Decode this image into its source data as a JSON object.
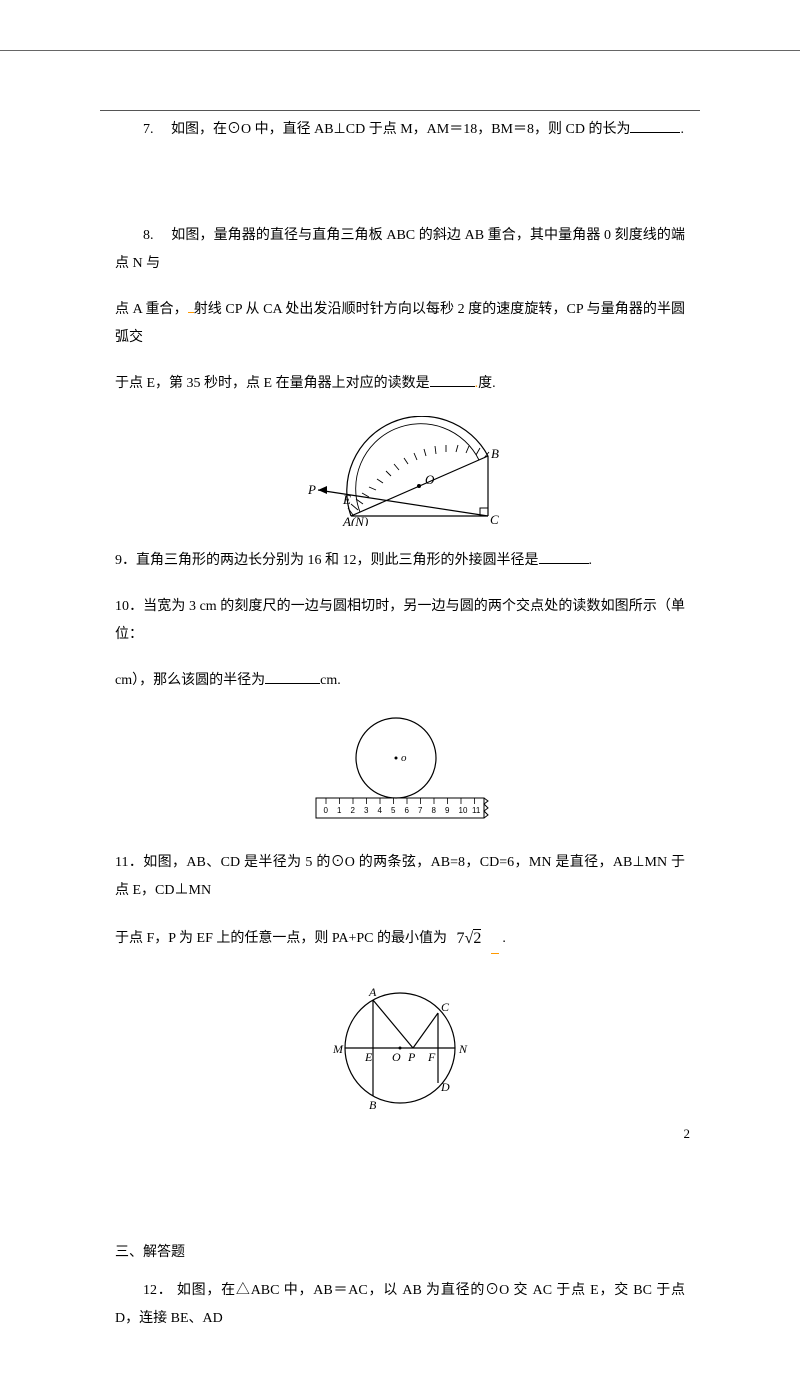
{
  "q7": {
    "text": "7.　 如图，在⊙O 中，直径 AB⊥CD 于点 M，AM＝18，BM＝8，则 CD 的长为",
    "suffix": "."
  },
  "q8": {
    "line1": "8.　 如图，量角器的直径与直角三角板 ABC 的斜边 AB 重合，其中量角器 0 刻度线的端点 N 与",
    "line2_a": "点 A 重合，",
    "line2_b": "射线 CP 从 CA 处出发沿顺时针方向以每秒 2 度的速度旋转，CP 与量角器的半圆弧交",
    "line3_a": "于点 E，第 35 秒时，点 E 在量角器上对应的读数是",
    "line3_b": "度.",
    "fig": {
      "labels": {
        "P": "P",
        "E": "E",
        "O": "O",
        "B": "B",
        "A": "A(N)",
        "C": "C"
      },
      "colors": {
        "stroke": "#000000",
        "fill": "#ffffff"
      }
    }
  },
  "q9": {
    "text": "9．直角三角形的两边长分别为 16 和 12，则此三角形的外接圆半径是",
    "suffix": "."
  },
  "q10": {
    "line1": "10．当宽为 3 cm 的刻度尺的一边与圆相切时，另一边与圆的两个交点处的读数如图所示（单位：",
    "line2_a": "cm），那么该圆的半径为",
    "line2_b": "cm.",
    "fig": {
      "O": "o",
      "ticks": [
        "0",
        "1",
        "2",
        "3",
        "4",
        "5",
        "6",
        "7",
        "8",
        "9",
        "10",
        "11"
      ],
      "colors": {
        "stroke": "#000000"
      }
    }
  },
  "q11": {
    "line1": "11．如图，AB、CD 是半径为 5 的⊙O 的两条弦，AB=8，CD=6，MN 是直径，AB⊥MN 于点 E，CD⊥MN",
    "line2_a": "于点 F，P 为 EF 上的任意一点，则 PA+PC 的最小值为",
    "answer": "7√2",
    "line2_b": ".",
    "fig": {
      "labels": {
        "A": "A",
        "B": "B",
        "C": "C",
        "D": "D",
        "M": "M",
        "N": "N",
        "E": "E",
        "O": "O",
        "P": "P",
        "F": "F"
      },
      "colors": {
        "stroke": "#000000"
      }
    }
  },
  "section3": "三、解答题",
  "q12": {
    "text": "12． 如图，在△ABC 中，AB＝AC，以 AB 为直径的⊙O 交 AC 于点 E，交 BC 于点 D，连接 BE、AD"
  },
  "pageNumber": "2"
}
